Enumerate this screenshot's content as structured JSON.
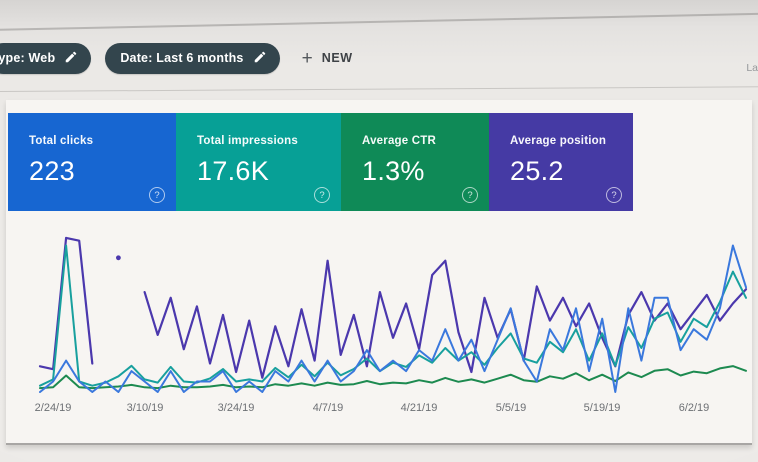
{
  "header": {
    "chips": [
      {
        "label": "type: Web",
        "icon": "pencil-icon"
      },
      {
        "label": "Date: Last 6 months",
        "icon": "pencil-icon"
      }
    ],
    "new_button": {
      "plus": "+",
      "label": "NEW"
    },
    "edge_text": "La"
  },
  "cards": [
    {
      "label": "Total clicks",
      "value": "223",
      "color": "#1766d1",
      "help": "?"
    },
    {
      "label": "Total impressions",
      "value": "17.6K",
      "color": "#07a096",
      "help": "?"
    },
    {
      "label": "Average CTR",
      "value": "1.3%",
      "color": "#0f8a57",
      "help": "?"
    },
    {
      "label": "Average position",
      "value": "25.2",
      "color": "#453aa4",
      "help": "?"
    }
  ],
  "chart_data": {
    "type": "line",
    "title": "",
    "xlabel": "",
    "ylabel": "",
    "grid": false,
    "legend": "none",
    "x_start": "2/22/19",
    "x_end": "6/10/19",
    "point_interval_days": 2,
    "x_ticks": [
      {
        "index": 1,
        "label": "2/24/19"
      },
      {
        "index": 8,
        "label": "3/10/19"
      },
      {
        "index": 15,
        "label": "3/24/19"
      },
      {
        "index": 22,
        "label": "4/7/19"
      },
      {
        "index": 29,
        "label": "4/21/19"
      },
      {
        "index": 36,
        "label": "5/5/19"
      },
      {
        "index": 43,
        "label": "5/19/19"
      },
      {
        "index": 50,
        "label": "6/2/19"
      }
    ],
    "totals": {
      "clicks": "223",
      "impressions": "17.6K",
      "ctr": "1.3%",
      "position": "25.2"
    },
    "series": [
      {
        "name": "Clicks",
        "color": "#3a78dd",
        "width": 2,
        "scale": {
          "min": 0,
          "max": 15,
          "invert": false
        },
        "values": [
          0,
          1,
          3,
          1,
          0,
          1,
          0,
          2,
          1,
          0,
          2,
          0,
          1,
          1,
          2,
          0,
          1,
          0,
          2,
          1,
          3,
          1,
          3,
          1,
          2,
          4,
          2,
          3,
          2,
          4,
          3,
          6,
          3,
          5,
          2,
          5,
          8,
          3,
          1,
          6,
          4,
          8,
          2,
          7,
          0,
          8,
          3,
          9,
          9,
          4,
          6,
          5,
          8,
          14,
          10
        ]
      },
      {
        "name": "Impressions",
        "color": "#18a09e",
        "width": 2,
        "scale": {
          "min": 0,
          "max": 1500,
          "invert": false
        },
        "values": [
          60,
          120,
          1400,
          100,
          60,
          90,
          150,
          250,
          120,
          90,
          240,
          100,
          90,
          130,
          220,
          100,
          120,
          100,
          230,
          140,
          260,
          150,
          280,
          160,
          220,
          320,
          200,
          280,
          240,
          350,
          280,
          420,
          300,
          380,
          260,
          420,
          560,
          320,
          280,
          480,
          380,
          600,
          300,
          560,
          250,
          620,
          420,
          700,
          760,
          480,
          700,
          620,
          860,
          1150,
          900
        ]
      },
      {
        "name": "CTR",
        "color": "#1d8a50",
        "width": 2,
        "unit": "%",
        "scale": {
          "min": 0,
          "max": 20,
          "invert": false
        },
        "values": [
          0.5,
          0.6,
          2.1,
          0.6,
          0.5,
          0.6,
          0.7,
          0.9,
          0.6,
          0.5,
          0.8,
          0.6,
          0.6,
          0.7,
          0.9,
          0.6,
          0.7,
          0.6,
          1.0,
          0.8,
          1.1,
          0.8,
          1.2,
          0.9,
          1.0,
          1.4,
          1.0,
          1.2,
          1.1,
          1.5,
          1.2,
          1.8,
          1.3,
          1.6,
          1.2,
          1.7,
          2.2,
          1.5,
          1.3,
          2.0,
          1.7,
          2.4,
          1.5,
          2.2,
          1.4,
          2.5,
          1.9,
          2.7,
          2.9,
          2.1,
          2.6,
          2.4,
          3.0,
          3.3,
          2.7
        ]
      },
      {
        "name": "Position",
        "color": "#4b38ad",
        "width": 2.2,
        "scale": {
          "min": 0,
          "max": 55,
          "invert": true
        },
        "values": [
          46,
          47,
          1,
          2,
          45,
          null,
          8,
          null,
          20,
          35,
          22,
          40,
          25,
          45,
          28,
          48,
          30,
          50,
          32,
          46,
          26,
          44,
          9,
          42,
          28,
          46,
          20,
          36,
          24,
          40,
          14,
          9,
          34,
          48,
          22,
          36,
          26,
          44,
          18,
          30,
          22,
          32,
          24,
          36,
          46,
          28,
          20,
          30,
          24,
          33,
          27,
          21,
          30,
          24,
          19
        ]
      }
    ]
  }
}
